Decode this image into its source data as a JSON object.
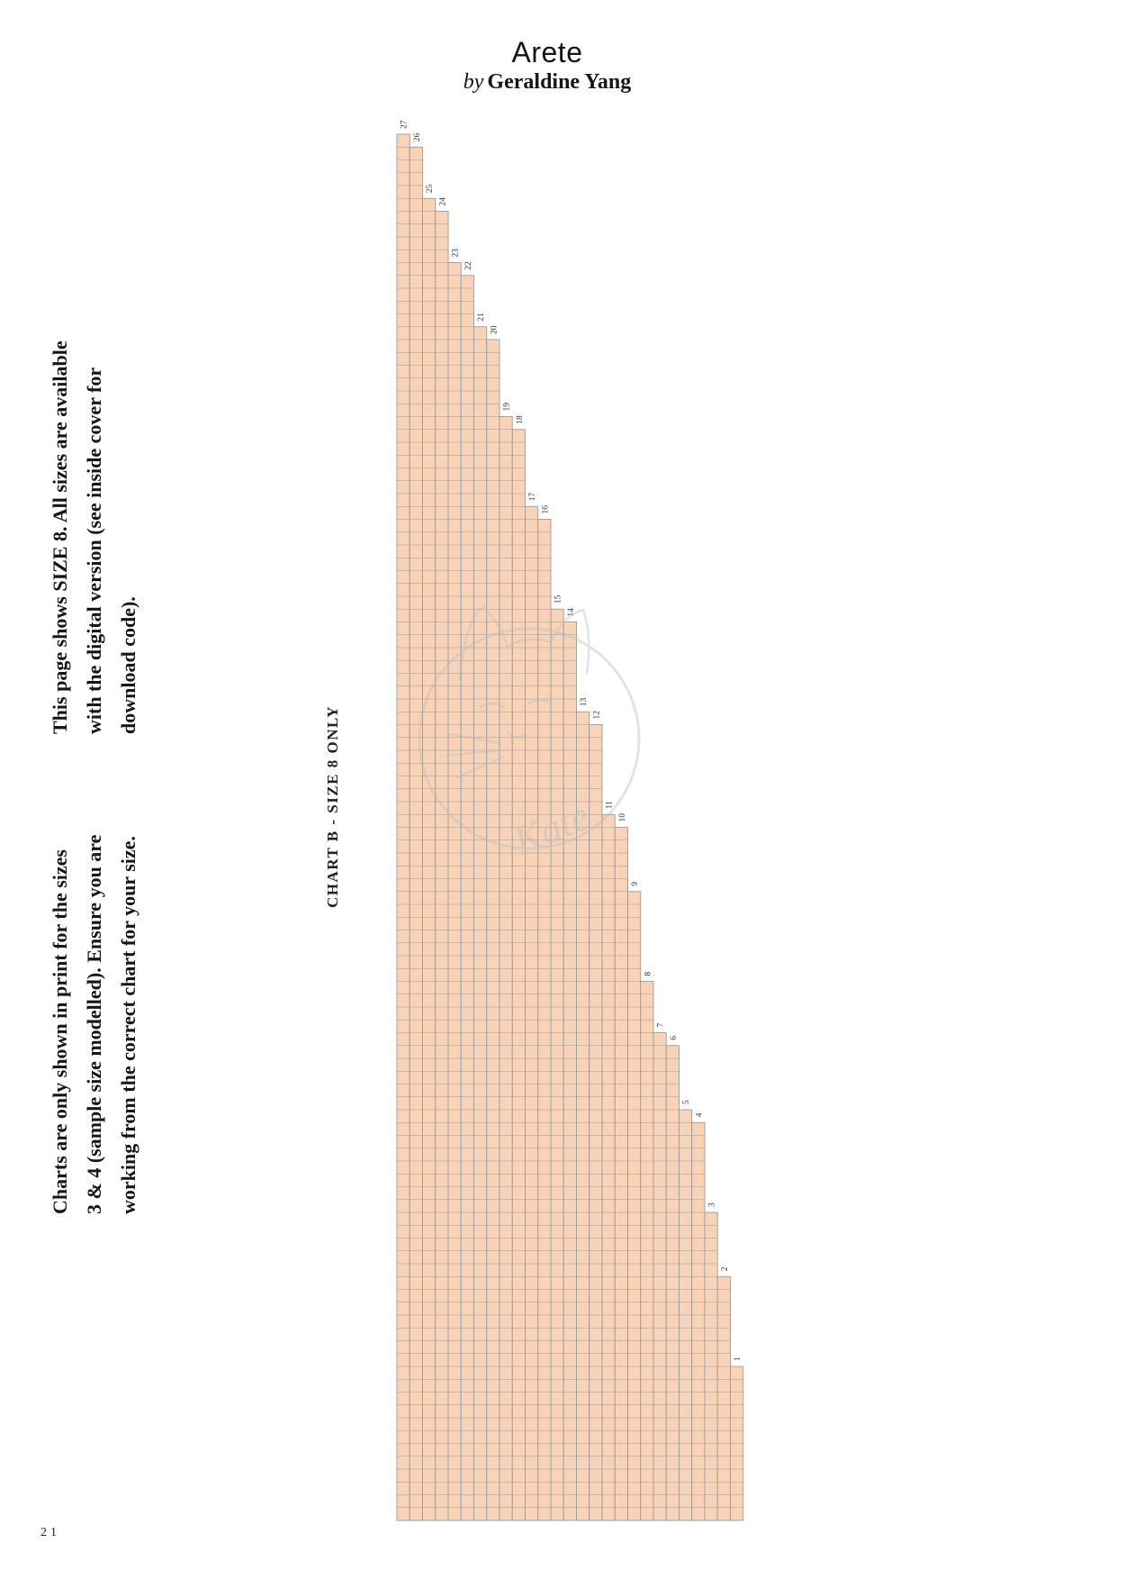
{
  "page": {
    "title": "Arete",
    "byline_prefix": "by",
    "byline_name": "Geraldine Yang",
    "number": "21"
  },
  "notes": {
    "note_size": [
      "This page shows SIZE 8. All sizes are available",
      "with the digital version (see inside cover for",
      "download code)."
    ],
    "note_charts": [
      "Charts are only shown in print for the sizes",
      "3 & 4 (sample size modelled). Ensure you are",
      "working from the correct chart for your size."
    ]
  },
  "chart": {
    "caption": "CHART B - SIZE 8 ONLY"
  },
  "watermark": {
    "text": "Kate"
  },
  "chart_data": {
    "type": "heatmap",
    "title": "CHART B - SIZE 8 ONLY",
    "description": "Knitting stitch chart displayed rotated 90 degrees. Columns correspond to chart rows numbered 27 (leftmost) down to 1 (rightmost). Each column is one stitch wide, filled from its start row down to the shared bottom edge, forming a staircase silhouette.",
    "columns_labels": [
      27,
      26,
      25,
      24,
      23,
      22,
      21,
      20,
      19,
      18,
      17,
      16,
      15,
      14,
      13,
      12,
      11,
      10,
      9,
      8,
      7,
      6,
      5,
      4,
      3,
      2,
      1
    ],
    "column_start_rows": [
      0,
      1,
      5,
      6,
      10,
      11,
      15,
      16,
      22,
      23,
      29,
      30,
      37,
      38,
      45,
      46,
      53,
      54,
      59,
      66,
      70,
      71,
      76,
      77,
      84,
      89,
      96
    ],
    "total_rows": 108,
    "cell_size_px": 14.25,
    "cell_fill": "#f8d3b8",
    "grid_color": "#9b9b9b",
    "label_color": "#333333",
    "legend": "no stitch symbols shown; plain filled grid",
    "grid": true
  }
}
